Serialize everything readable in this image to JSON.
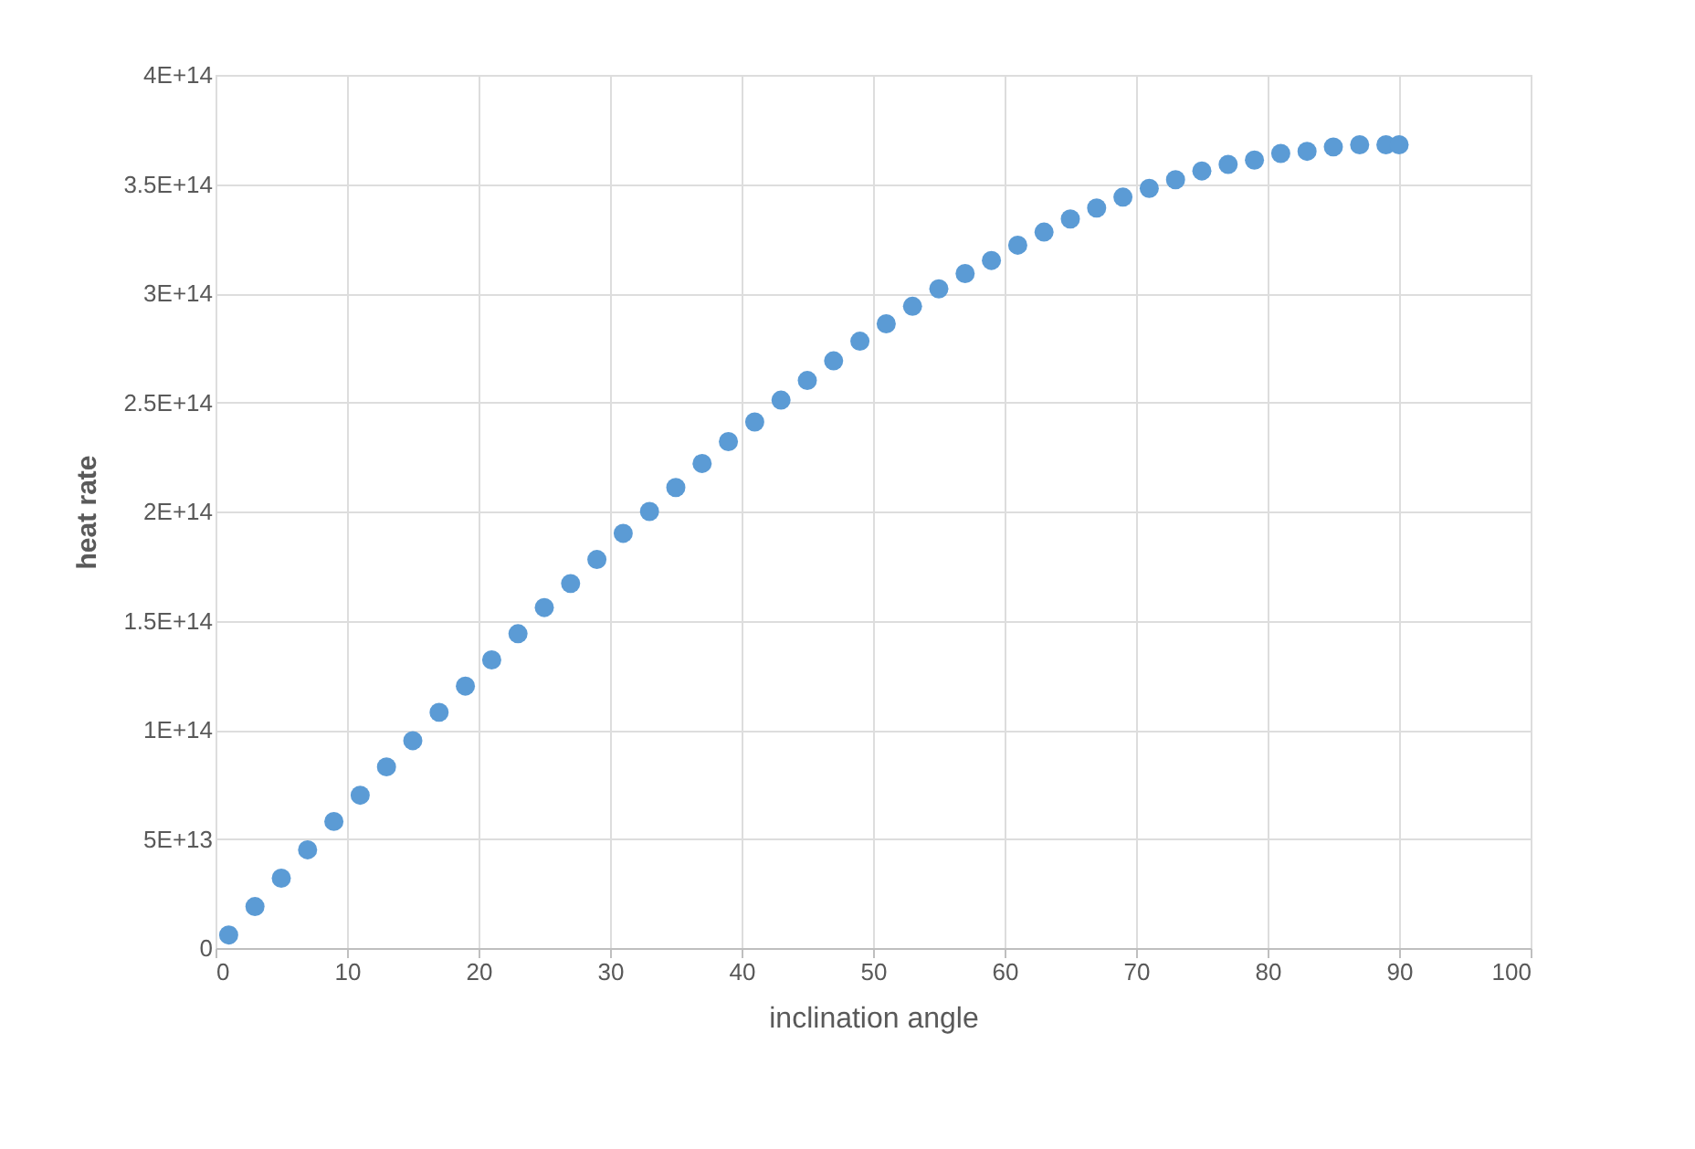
{
  "chart_data": {
    "type": "scatter",
    "xlabel": "inclination angle",
    "ylabel": "heat rate",
    "x": [
      1,
      3,
      5,
      7,
      9,
      11,
      13,
      15,
      17,
      19,
      21,
      23,
      25,
      27,
      29,
      31,
      33,
      35,
      37,
      39,
      41,
      43,
      45,
      47,
      49,
      51,
      53,
      55,
      57,
      59,
      61,
      63,
      65,
      67,
      69,
      71,
      73,
      75,
      77,
      79,
      81,
      83,
      85,
      87,
      89,
      90
    ],
    "series": [
      {
        "color": "#5b9bd5",
        "values": [
          6000000000000.0,
          19000000000000.0,
          32000000000000.0,
          45000000000000.0,
          58000000000000.0,
          70000000000000.0,
          83000000000000.0,
          95000000000000.0,
          108000000000000.0,
          120000000000000.0,
          132000000000000.0,
          144000000000000.0,
          156000000000000.0,
          167000000000000.0,
          178000000000000.0,
          190000000000000.0,
          200000000000000.0,
          211000000000000.0,
          222000000000000.0,
          232000000000000.0,
          241000000000000.0,
          251000000000000.0,
          260000000000000.0,
          269000000000000.0,
          278000000000000.0,
          286000000000000.0,
          294000000000000.0,
          302000000000000.0,
          309000000000000.0,
          315000000000000.0,
          322000000000000.0,
          328000000000000.0,
          334000000000000.0,
          339000000000000.0,
          344000000000000.0,
          348000000000000.0,
          352000000000000.0,
          356000000000000.0,
          359000000000000.0,
          361000000000000.0,
          364000000000000.0,
          365000000000000.0,
          367000000000000.0,
          368000000000000.0,
          368000000000000.0,
          368000000000000.0
        ]
      }
    ],
    "xlim": [
      0,
      100
    ],
    "xticks": [
      0,
      10,
      20,
      30,
      40,
      50,
      60,
      70,
      80,
      90,
      100
    ],
    "ylim": [
      0,
      400000000000000.0
    ],
    "yticks": [
      0,
      {
        "value": 50000000000000.0,
        "label": "5E+13"
      },
      {
        "value": 100000000000000.0,
        "label": "1E+14"
      },
      {
        "value": 150000000000000.0,
        "label": "1.5E+14"
      },
      {
        "value": 200000000000000.0,
        "label": "2E+14"
      },
      {
        "value": 250000000000000.0,
        "label": "2.5E+14"
      },
      {
        "value": 300000000000000.0,
        "label": "3E+14"
      },
      {
        "value": 350000000000000.0,
        "label": "3.5E+14"
      },
      {
        "value": 400000000000000.0,
        "label": "4E+14"
      }
    ],
    "grid": true,
    "marker": "circle"
  }
}
